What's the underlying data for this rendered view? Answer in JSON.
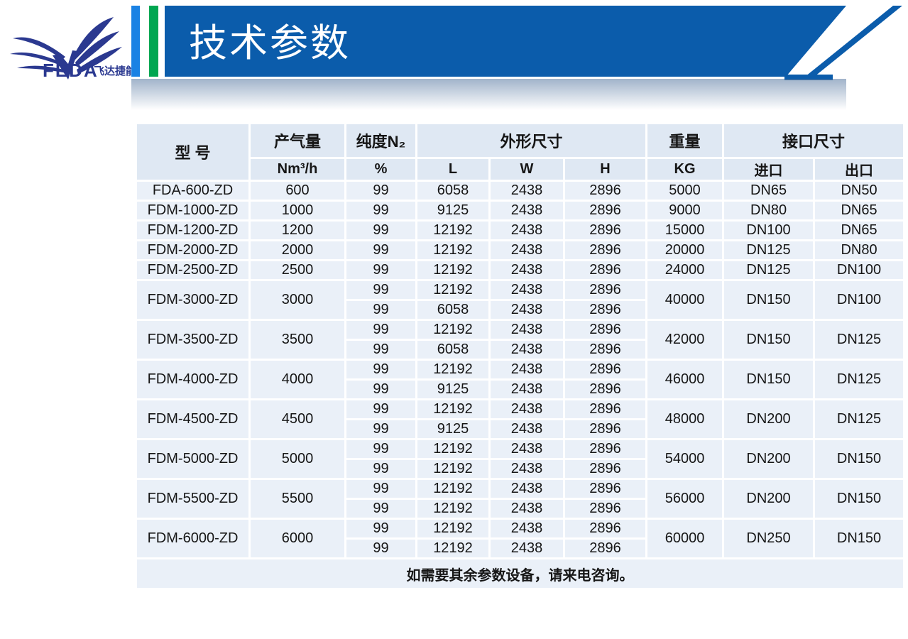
{
  "brand": {
    "logo_text": "FEDA",
    "logo_cn": "飞达捷能"
  },
  "header": {
    "title": "技术参数"
  },
  "colors": {
    "band_blue": "#0b5cab",
    "accent_blue": "#1a82e4",
    "accent_green": "#00a651",
    "logo_navy": "#2b3990",
    "header_cell_bg": "#dfe8f3",
    "data_cell_bg": "#eaf0f8"
  },
  "table": {
    "headers": {
      "model": "型 号",
      "capacity": "产气量",
      "capacity_unit": "Nm³/h",
      "purity": "纯度N₂",
      "purity_unit": "%",
      "dimensions": "外形尺寸",
      "dim_l": "L",
      "dim_w": "W",
      "dim_h": "H",
      "weight": "重量",
      "weight_unit": "KG",
      "interface": "接口尺寸",
      "inlet": "进口",
      "outlet": "出口"
    },
    "rows": [
      {
        "model": "FDA-600-ZD",
        "capacity": "600",
        "weight": "5000",
        "inlet": "DN65",
        "outlet": "DN50",
        "subrows": [
          {
            "purity": "99",
            "l": "6058",
            "w": "2438",
            "h": "2896"
          }
        ]
      },
      {
        "model": "FDM-1000-ZD",
        "capacity": "1000",
        "weight": "9000",
        "inlet": "DN80",
        "outlet": "DN65",
        "subrows": [
          {
            "purity": "99",
            "l": "9125",
            "w": "2438",
            "h": "2896"
          }
        ]
      },
      {
        "model": "FDM-1200-ZD",
        "capacity": "1200",
        "weight": "15000",
        "inlet": "DN100",
        "outlet": "DN65",
        "subrows": [
          {
            "purity": "99",
            "l": "12192",
            "w": "2438",
            "h": "2896"
          }
        ]
      },
      {
        "model": "FDM-2000-ZD",
        "capacity": "2000",
        "weight": "20000",
        "inlet": "DN125",
        "outlet": "DN80",
        "subrows": [
          {
            "purity": "99",
            "l": "12192",
            "w": "2438",
            "h": "2896"
          }
        ]
      },
      {
        "model": "FDM-2500-ZD",
        "capacity": "2500",
        "weight": "24000",
        "inlet": "DN125",
        "outlet": "DN100",
        "subrows": [
          {
            "purity": "99",
            "l": "12192",
            "w": "2438",
            "h": "2896"
          }
        ]
      },
      {
        "model": "FDM-3000-ZD",
        "capacity": "3000",
        "weight": "40000",
        "inlet": "DN150",
        "outlet": "DN100",
        "subrows": [
          {
            "purity": "99",
            "l": "12192",
            "w": "2438",
            "h": "2896"
          },
          {
            "purity": "99",
            "l": "6058",
            "w": "2438",
            "h": "2896"
          }
        ]
      },
      {
        "model": "FDM-3500-ZD",
        "capacity": "3500",
        "weight": "42000",
        "inlet": "DN150",
        "outlet": "DN125",
        "subrows": [
          {
            "purity": "99",
            "l": "12192",
            "w": "2438",
            "h": "2896"
          },
          {
            "purity": "99",
            "l": "6058",
            "w": "2438",
            "h": "2896"
          }
        ]
      },
      {
        "model": "FDM-4000-ZD",
        "capacity": "4000",
        "weight": "46000",
        "inlet": "DN150",
        "outlet": "DN125",
        "subrows": [
          {
            "purity": "99",
            "l": "12192",
            "w": "2438",
            "h": "2896"
          },
          {
            "purity": "99",
            "l": "9125",
            "w": "2438",
            "h": "2896"
          }
        ]
      },
      {
        "model": "FDM-4500-ZD",
        "capacity": "4500",
        "weight": "48000",
        "inlet": "DN200",
        "outlet": "DN125",
        "subrows": [
          {
            "purity": "99",
            "l": "12192",
            "w": "2438",
            "h": "2896"
          },
          {
            "purity": "99",
            "l": "9125",
            "w": "2438",
            "h": "2896"
          }
        ]
      },
      {
        "model": "FDM-5000-ZD",
        "capacity": "5000",
        "weight": "54000",
        "inlet": "DN200",
        "outlet": "DN150",
        "subrows": [
          {
            "purity": "99",
            "l": "12192",
            "w": "2438",
            "h": "2896"
          },
          {
            "purity": "99",
            "l": "12192",
            "w": "2438",
            "h": "2896"
          }
        ]
      },
      {
        "model": "FDM-5500-ZD",
        "capacity": "5500",
        "weight": "56000",
        "inlet": "DN200",
        "outlet": "DN150",
        "subrows": [
          {
            "purity": "99",
            "l": "12192",
            "w": "2438",
            "h": "2896"
          },
          {
            "purity": "99",
            "l": "12192",
            "w": "2438",
            "h": "2896"
          }
        ]
      },
      {
        "model": "FDM-6000-ZD",
        "capacity": "6000",
        "weight": "60000",
        "inlet": "DN250",
        "outlet": "DN150",
        "subrows": [
          {
            "purity": "99",
            "l": "12192",
            "w": "2438",
            "h": "2896"
          },
          {
            "purity": "99",
            "l": "12192",
            "w": "2438",
            "h": "2896"
          }
        ]
      }
    ],
    "footer_note": "如需要其余参数设备，请来电咨询。"
  }
}
